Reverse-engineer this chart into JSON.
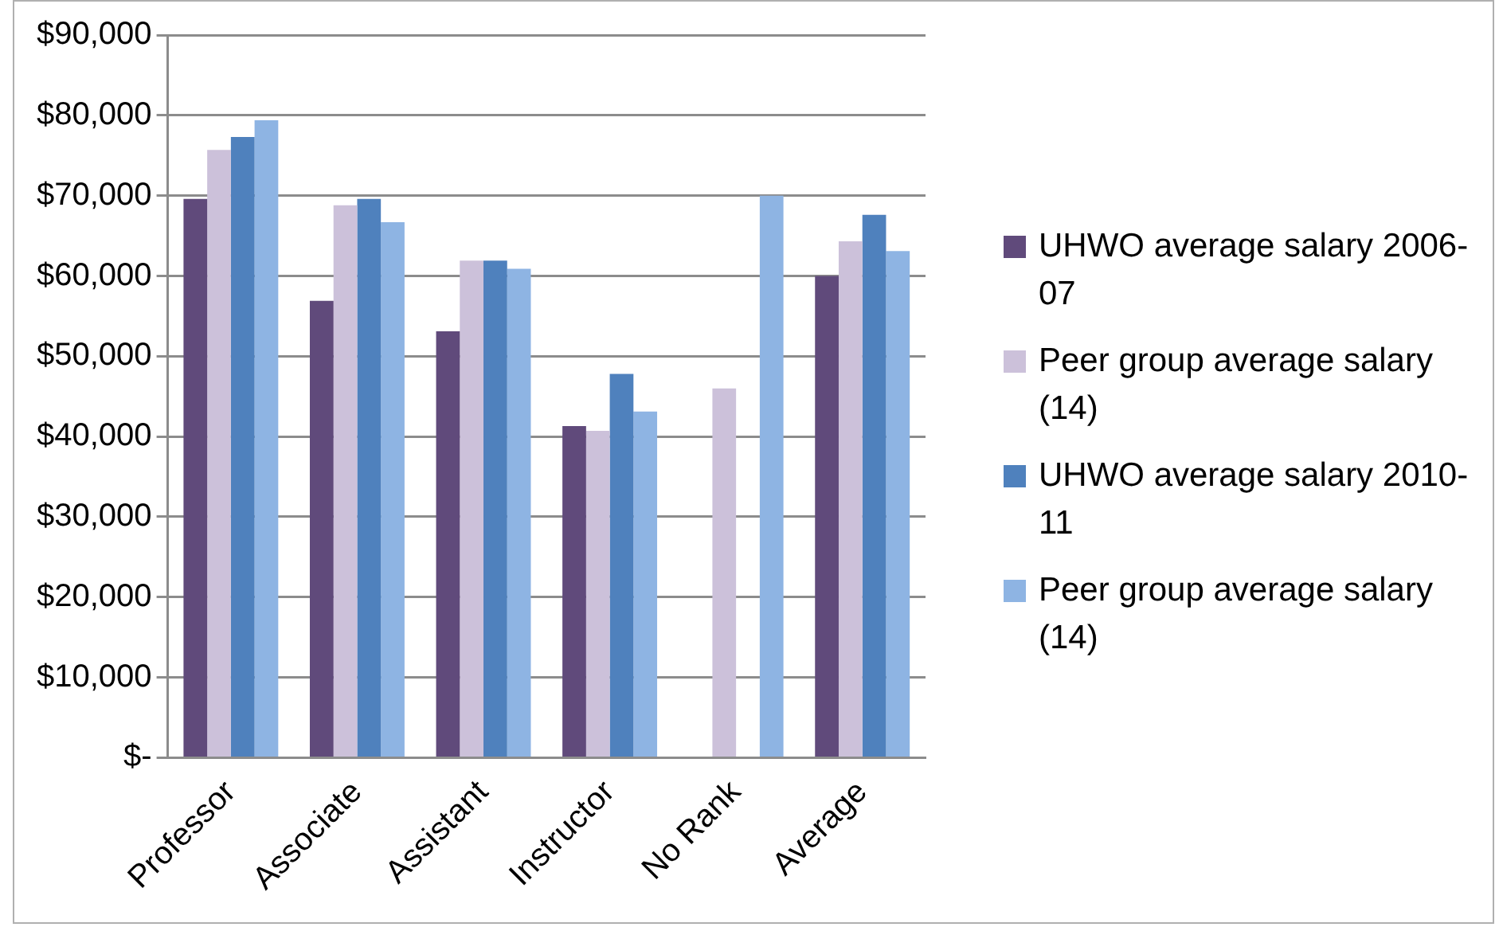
{
  "chart_data": {
    "type": "bar",
    "categories": [
      "Professor",
      "Associate",
      "Assistant",
      "Instructor",
      "No Rank",
      "Average"
    ],
    "series": [
      {
        "name": "UHWO average salary 2006-07",
        "color": "#604a7b",
        "values": [
          69600,
          56900,
          53100,
          41300,
          null,
          60000
        ]
      },
      {
        "name": "Peer group average salary (14)",
        "color": "#ccc1da",
        "values": [
          75700,
          68800,
          61900,
          40700,
          46000,
          64300
        ]
      },
      {
        "name": "UHWO average salary 2010-11",
        "color": "#4f81bd",
        "values": [
          77300,
          69600,
          61900,
          47800,
          null,
          67600
        ]
      },
      {
        "name": "Peer group average salary (14)",
        "color": "#8eb4e3",
        "values": [
          79400,
          66700,
          60900,
          43100,
          70000,
          63100
        ]
      }
    ],
    "ylim": [
      0,
      90000
    ],
    "yticks": [
      {
        "value": 0,
        "label": "$-"
      },
      {
        "value": 10000,
        "label": "$10,000"
      },
      {
        "value": 20000,
        "label": "$20,000"
      },
      {
        "value": 30000,
        "label": "$30,000"
      },
      {
        "value": 40000,
        "label": "$40,000"
      },
      {
        "value": 50000,
        "label": "$50,000"
      },
      {
        "value": 60000,
        "label": "$60,000"
      },
      {
        "value": 70000,
        "label": "$70,000"
      },
      {
        "value": 80000,
        "label": "$80,000"
      },
      {
        "value": 90000,
        "label": "$90,000"
      }
    ],
    "grid": "y",
    "legend": "right"
  }
}
